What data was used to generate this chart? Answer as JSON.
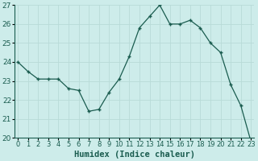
{
  "title": "",
  "xlabel": "Humidex (Indice chaleur)",
  "ylabel": "",
  "x_values": [
    0,
    1,
    2,
    3,
    4,
    5,
    6,
    7,
    8,
    9,
    10,
    11,
    12,
    13,
    14,
    15,
    16,
    17,
    18,
    19,
    20,
    21,
    22,
    23
  ],
  "y_values": [
    24.0,
    23.5,
    23.1,
    23.1,
    23.1,
    22.6,
    22.5,
    21.4,
    21.5,
    22.4,
    23.1,
    24.3,
    25.8,
    26.4,
    27.0,
    26.0,
    26.0,
    26.2,
    25.8,
    25.0,
    24.5,
    22.8,
    21.7,
    19.8
  ],
  "line_color": "#1a5c4f",
  "marker_color": "#1a5c4f",
  "bg_color": "#cdecea",
  "grid_color": "#b8dbd8",
  "axis_color": "#1a5c4f",
  "tick_color": "#1a5c4f",
  "ylim": [
    20,
    27
  ],
  "yticks": [
    20,
    21,
    22,
    23,
    24,
    25,
    26,
    27
  ],
  "xlim": [
    -0.3,
    23.3
  ],
  "tick_fontsize": 6.5,
  "label_fontsize": 7.5
}
